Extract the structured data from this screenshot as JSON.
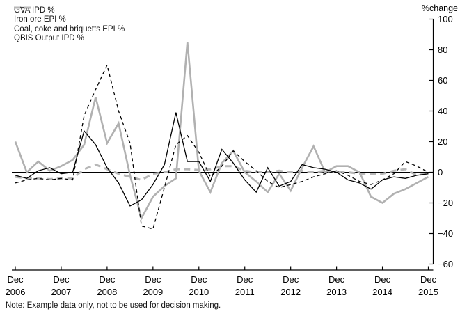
{
  "chart_data": {
    "type": "line",
    "y_axis_title": "%change",
    "note": "Note: Example data only, not to be used for decision making.",
    "ylim": [
      -60,
      100
    ],
    "grid": "off",
    "legend_position": "top-left",
    "y_ticks": [
      {
        "value": 100,
        "label": "100"
      },
      {
        "value": 80,
        "label": "80"
      },
      {
        "value": 60,
        "label": "60"
      },
      {
        "value": 40,
        "label": "40"
      },
      {
        "value": 20,
        "label": "20"
      },
      {
        "value": 0,
        "label": "0"
      },
      {
        "value": -20,
        "label": "−20"
      },
      {
        "value": -40,
        "label": "−40"
      },
      {
        "value": -60,
        "label": "−60"
      }
    ],
    "x_tick_years": [
      {
        "quarter_index": 0,
        "line1": "Dec",
        "line2": "2006"
      },
      {
        "quarter_index": 4,
        "line1": "Dec",
        "line2": "2007"
      },
      {
        "quarter_index": 8,
        "line1": "Dec",
        "line2": "2008"
      },
      {
        "quarter_index": 12,
        "line1": "Dec",
        "line2": "2009"
      },
      {
        "quarter_index": 16,
        "line1": "Dec",
        "line2": "2010"
      },
      {
        "quarter_index": 20,
        "line1": "Dec",
        "line2": "2011"
      },
      {
        "quarter_index": 24,
        "line1": "Dec",
        "line2": "2012"
      },
      {
        "quarter_index": 28,
        "line1": "Dec",
        "line2": "2013"
      },
      {
        "quarter_index": 32,
        "line1": "Dec",
        "line2": "2014"
      },
      {
        "quarter_index": 36,
        "line1": "Dec",
        "line2": "2015"
      }
    ],
    "x": [
      "Dec 2006",
      "Mar 2007",
      "Jun 2007",
      "Sep 2007",
      "Dec 2007",
      "Mar 2008",
      "Jun 2008",
      "Sep 2008",
      "Dec 2008",
      "Mar 2009",
      "Jun 2009",
      "Sep 2009",
      "Dec 2009",
      "Mar 2010",
      "Jun 2010",
      "Sep 2010",
      "Dec 2010",
      "Mar 2011",
      "Jun 2011",
      "Sep 2011",
      "Dec 2011",
      "Mar 2012",
      "Jun 2012",
      "Sep 2012",
      "Dec 2012",
      "Mar 2013",
      "Jun 2013",
      "Sep 2013",
      "Dec 2013",
      "Mar 2014",
      "Jun 2014",
      "Sep 2014",
      "Dec 2014",
      "Mar 2015",
      "Jun 2015",
      "Sep 2015",
      "Dec 2015"
    ],
    "series": [
      {
        "name": "GVA IPD %",
        "style": "solid",
        "color": "#000000",
        "width": 1.3,
        "values": [
          -2,
          -4,
          1,
          3,
          -1,
          0,
          27,
          18,
          3,
          -7,
          -22,
          -18,
          -8,
          5,
          39,
          7,
          7,
          -6,
          15,
          6,
          -5,
          -13,
          3,
          -9,
          -6,
          5,
          3,
          2,
          0,
          -5,
          -7,
          -11,
          -5,
          -3,
          -4,
          -2,
          -1
        ]
      },
      {
        "name": "Iron ore EPI %",
        "style": "solid",
        "color": "#b1b1b1",
        "width": 2.6,
        "values": [
          20,
          0,
          7,
          1,
          4,
          8,
          18,
          49,
          19,
          32,
          -2,
          -30,
          -16,
          -9,
          -4,
          85,
          1,
          -13,
          6,
          14,
          0,
          -6,
          -13,
          -1,
          -12,
          3,
          17,
          0,
          4,
          4,
          0,
          -16,
          -20,
          -14,
          -11,
          -7,
          -3
        ]
      },
      {
        "name": "Coal, coke and briquetts EPI %",
        "style": "dashed",
        "color": "#000000",
        "width": 1.3,
        "values": [
          -7,
          -5,
          -4,
          -5,
          -4,
          -5,
          37,
          54,
          70,
          40,
          19,
          -35,
          -37,
          -10,
          18,
          24,
          13,
          -3,
          4,
          14,
          7,
          1,
          -6,
          -10,
          -8,
          -6,
          -3,
          -1,
          1,
          -2,
          -6,
          -8,
          -5,
          -1,
          7,
          4,
          0
        ]
      },
      {
        "name": "QBIS Output IPD %",
        "style": "dashed-thick",
        "color": "#b7b7b7",
        "width": 3,
        "values": [
          -3,
          -4,
          -4,
          -4.5,
          -4,
          -4,
          2,
          5,
          2,
          -1,
          -3,
          -5,
          -1,
          0,
          2,
          2,
          1.5,
          2,
          4,
          4,
          1,
          0,
          0,
          1,
          0,
          1,
          0,
          1,
          0,
          0,
          -1,
          -1,
          -1,
          1,
          2,
          -2,
          -0.5
        ]
      }
    ]
  }
}
